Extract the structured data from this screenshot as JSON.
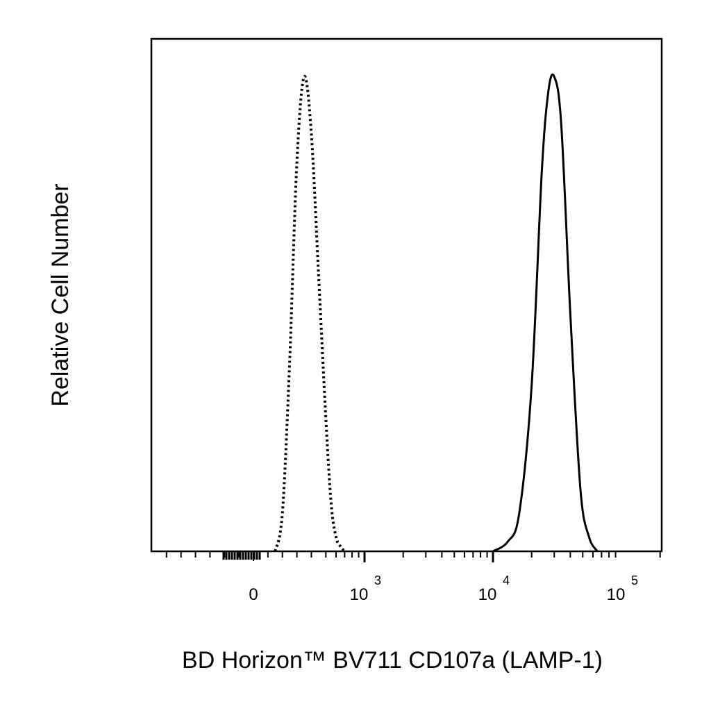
{
  "chart_data": {
    "type": "line",
    "title": "",
    "xlabel": "BD Horizon™ BV711 CD107a (LAMP-1)",
    "ylabel": "Relative Cell Number",
    "x_scale": "biexponential",
    "xlim": [
      -1000,
      220000
    ],
    "ylim": [
      0,
      1.08
    ],
    "grid": false,
    "legend": "none",
    "x_ticks": [
      {
        "value": 0,
        "base": "0",
        "exp": ""
      },
      {
        "value": 1000,
        "base": "10",
        "exp": "3"
      },
      {
        "value": 10000,
        "base": "10",
        "exp": "4"
      },
      {
        "value": 100000,
        "base": "10",
        "exp": "5"
      }
    ],
    "series": [
      {
        "style": "dotted",
        "color": "#000000",
        "x": [
          150,
          200,
          250,
          300,
          350,
          400,
          450,
          500,
          550,
          600,
          650,
          700
        ],
        "y": [
          0.0,
          0.08,
          0.4,
          0.82,
          1.0,
          0.88,
          0.58,
          0.28,
          0.1,
          0.03,
          0.01,
          0.0
        ]
      },
      {
        "style": "solid",
        "color": "#000000",
        "x": [
          10000,
          13000,
          16000,
          20000,
          24000,
          27000,
          30000,
          34000,
          40000,
          48000,
          56000,
          65000
        ],
        "y": [
          0.0,
          0.02,
          0.08,
          0.35,
          0.8,
          0.97,
          1.0,
          0.9,
          0.5,
          0.13,
          0.03,
          0.0
        ]
      }
    ]
  }
}
